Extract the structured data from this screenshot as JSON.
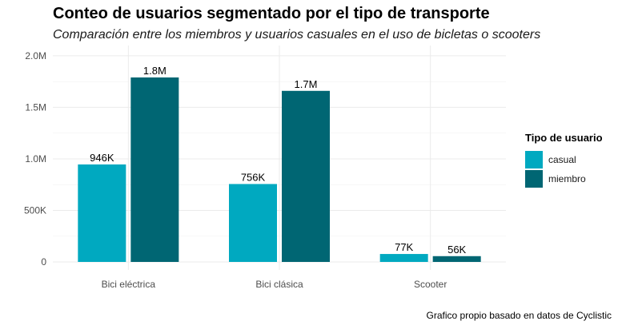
{
  "chart_data": {
    "type": "bar",
    "title": "Conteo de usuarios segmentado por el tipo de transporte",
    "subtitle": "Comparación entre los miembros y usuarios casuales en el uso de bicletas o scooters",
    "caption": "Grafico propio basado en datos de Cyclistic",
    "xlabel": "",
    "ylabel": "",
    "categories": [
      "Bici eléctrica",
      "Bici clásica",
      "Scooter"
    ],
    "series": [
      {
        "name": "casual",
        "values": [
          946000,
          756000,
          77000
        ],
        "labels": [
          "946K",
          "756K",
          "77K"
        ],
        "color": "#00a9c0"
      },
      {
        "name": "miembro",
        "values": [
          1790000,
          1660000,
          56000
        ],
        "labels": [
          "1.8M",
          "1.7M",
          "56K"
        ],
        "color": "#006673"
      }
    ],
    "ylim": [
      0,
      2100000
    ],
    "yticks": [
      0,
      500000,
      1000000,
      1500000,
      2000000
    ],
    "ytick_labels": [
      "0",
      "500K",
      "1.0M",
      "1.5M",
      "2.0M"
    ],
    "legend": {
      "title": "Tipo de usuario",
      "position": "right"
    },
    "grid": true
  }
}
